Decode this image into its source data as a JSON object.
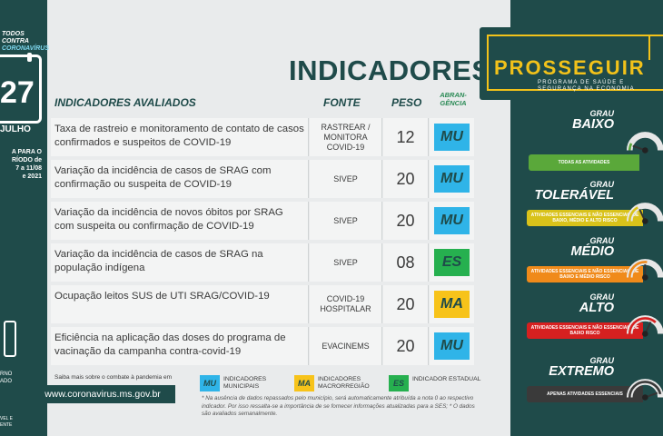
{
  "brand": {
    "line1": "TODOS CONTRA",
    "line2": "CORONAVÍRUS"
  },
  "calendar": {
    "day": "27",
    "month": "JULHO",
    "period": "A PARA O\nRÍODO de\n7 a 11/08\ne 2021"
  },
  "government": {
    "text": "RNO\nADO",
    "text2": "VEL E\nENTE"
  },
  "title": "INDICADORES",
  "table": {
    "headers": {
      "indicator": "INDICADORES AVALIADOS",
      "source": "FONTE",
      "weight": "PESO",
      "scope": "ABRAN-\nGÊNCIA"
    },
    "rows": [
      {
        "indicator": "Taxa de rastreio e monitoramento de contato de casos confirmados e suspeitos de COVID-19",
        "source": "RASTREAR / MONITORA COVID-19",
        "weight": "12",
        "scope": "MU"
      },
      {
        "indicator": "Variação da incidência de casos de SRAG com confirmação ou suspeita de COVID-19",
        "source": "SIVEP",
        "weight": "20",
        "scope": "MU"
      },
      {
        "indicator": "Variação da incidência de novos óbitos por SRAG com suspeita ou confirmação de COVID-19",
        "source": "SIVEP",
        "weight": "20",
        "scope": "MU"
      },
      {
        "indicator": "Variação da incidência de casos de SRAG na população indígena",
        "source": "SIVEP",
        "weight": "08",
        "scope": "ES"
      },
      {
        "indicator": "Ocupação leitos SUS de UTI SRAG/COVID-19",
        "source": "COVID-19 HOSPITALAR",
        "weight": "20",
        "scope": "MA"
      },
      {
        "indicator": "Eficiência na aplicação das doses do programa de vacinação da campanha contra-covid-19",
        "source": "EVACINEMS",
        "weight": "20",
        "scope": "MU"
      }
    ]
  },
  "footer": {
    "site_caption": "Saiba mais sobre o combate à pandemia em",
    "site_url": "www.coronavirus.ms.gov.br",
    "legend": [
      {
        "code": "MU",
        "label": "INDICADORES MUNICIPAIS"
      },
      {
        "code": "MA",
        "label": "INDICADORES MACRORREGIÃO"
      },
      {
        "code": "ES",
        "label": "INDICADOR ESTADUAL"
      }
    ],
    "note": "* Na ausência de dados repassados pelo município, será automaticamente atribuída a nota 0 ao respectivo indicador. Por isso ressalta-se a importância de se fornecer informações atualizadas para a SES; * O dados são avaliados semanalmente."
  },
  "program": {
    "title": "PROSSEGUIR",
    "subtitle": "PROGRAMA DE SAÚDE E\nSEGURANÇA NA ECONOMIA"
  },
  "levels": [
    {
      "small": "GRAU",
      "big": "BAIXO",
      "bar": "TODAS AS ATIVIDADES",
      "color": "#5aa83a"
    },
    {
      "small": "GRAU",
      "big": "TOLERÁVEL",
      "bar": "ATIVIDADES ESSENCIAIS e NÃO ESSENCIAIS DE BAIXO, MÉDIO e ALTO RISCO",
      "color": "#d9c21a"
    },
    {
      "small": "GRAU",
      "big": "MÉDIO",
      "bar": "ATIVIDADES ESSENCIAIS e NÃO ESSENCIAIS DE BAIXO e MÉDIO RISCO",
      "color": "#f08a1a"
    },
    {
      "small": "GRAU",
      "big": "ALTO",
      "bar": "ATIVIDADES ESSENCIAIS e NÃO ESSENCIAIS DE BAIXO RISCO",
      "color": "#d62020"
    },
    {
      "small": "GRAU",
      "big": "EXTREMO",
      "bar": "APENAS ATIVIDADES ESSENCIAIS",
      "color": "#3a3a3a"
    }
  ],
  "colors": {
    "primary": "#1f4b4a",
    "MU": "#2fb4e8",
    "ES": "#26b04f",
    "MA": "#f7c31a",
    "accent": "#f2c21a"
  }
}
